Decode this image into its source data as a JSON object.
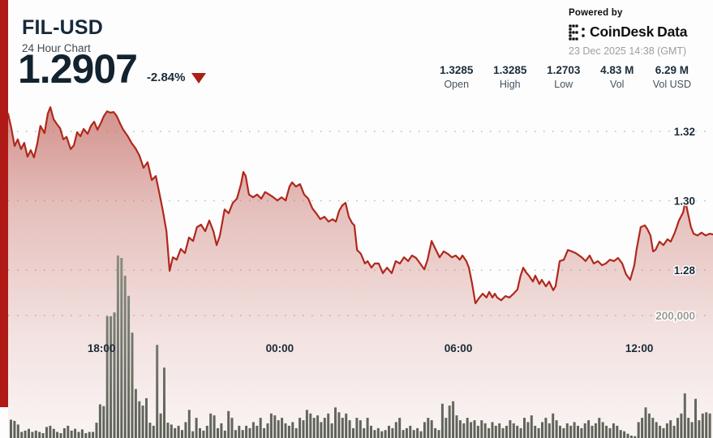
{
  "header": {
    "pair": "FIL-USD",
    "subtitle": "24 Hour Chart",
    "price": "1.2907",
    "change_pct": "-2.84%",
    "direction": "down"
  },
  "powered_by": {
    "label": "Powered by",
    "brand": "CoinDesk",
    "brand_suffix": "Data",
    "timestamp": "23 Dec 2025 14:38 (GMT)"
  },
  "stats": [
    {
      "value": "1.3285",
      "label": "Open"
    },
    {
      "value": "1.3285",
      "label": "High"
    },
    {
      "value": "1.2703",
      "label": "Low"
    },
    {
      "value": "4.83 M",
      "label": "Vol"
    },
    {
      "value": "6.29 M",
      "label": "Vol USD"
    }
  ],
  "colors": {
    "accent_red": "#b01a16",
    "line_red": "#b0281c",
    "navy_text": "#1b2a38",
    "grid_dot": "#8f8885",
    "volume_bar_top": "#8d9186",
    "volume_bar_bottom": "#5d6157",
    "vol_label_gray": "#a09a97"
  },
  "chart_data": {
    "type": "area",
    "title": "FIL-USD 24 Hour Chart",
    "legend": "none",
    "grid": "dotted-horizontal",
    "x_axis": {
      "range_hours": [
        0,
        24
      ],
      "ticks": [
        {
          "t": 3.18,
          "label": "18:00"
        },
        {
          "t": 9.25,
          "label": "00:00"
        },
        {
          "t": 15.33,
          "label": "06:00"
        },
        {
          "t": 21.49,
          "label": "12:00"
        }
      ]
    },
    "y_axis": {
      "ticks": [
        {
          "value": 1.32,
          "label": "1.32"
        },
        {
          "value": 1.3,
          "label": "1.30"
        },
        {
          "value": 1.28,
          "label": "1.28"
        }
      ],
      "approx_range": [
        1.266,
        1.335
      ]
    },
    "price_series": [
      [
        0.0,
        1.3251
      ],
      [
        0.11,
        1.3209
      ],
      [
        0.22,
        1.3158
      ],
      [
        0.33,
        1.3177
      ],
      [
        0.44,
        1.3149
      ],
      [
        0.55,
        1.3167
      ],
      [
        0.66,
        1.3127
      ],
      [
        0.77,
        1.3146
      ],
      [
        0.88,
        1.3125
      ],
      [
        0.99,
        1.3163
      ],
      [
        1.1,
        1.3216
      ],
      [
        1.24,
        1.3195
      ],
      [
        1.35,
        1.3251
      ],
      [
        1.44,
        1.327
      ],
      [
        1.55,
        1.3235
      ],
      [
        1.66,
        1.3221
      ],
      [
        1.77,
        1.3209
      ],
      [
        1.88,
        1.3177
      ],
      [
        1.99,
        1.3184
      ],
      [
        2.13,
        1.3149
      ],
      [
        2.24,
        1.316
      ],
      [
        2.35,
        1.3198
      ],
      [
        2.46,
        1.3186
      ],
      [
        2.57,
        1.3207
      ],
      [
        2.71,
        1.3193
      ],
      [
        2.82,
        1.3216
      ],
      [
        2.93,
        1.3228
      ],
      [
        3.04,
        1.3205
      ],
      [
        3.15,
        1.3223
      ],
      [
        3.26,
        1.3244
      ],
      [
        3.37,
        1.3258
      ],
      [
        3.48,
        1.3254
      ],
      [
        3.59,
        1.3256
      ],
      [
        3.7,
        1.3244
      ],
      [
        3.81,
        1.3223
      ],
      [
        3.92,
        1.3205
      ],
      [
        4.06,
        1.3188
      ],
      [
        4.2,
        1.3167
      ],
      [
        4.34,
        1.3151
      ],
      [
        4.47,
        1.313
      ],
      [
        4.61,
        1.3095
      ],
      [
        4.75,
        1.3111
      ],
      [
        4.89,
        1.306
      ],
      [
        5.03,
        1.3071
      ],
      [
        5.16,
        1.3018
      ],
      [
        5.27,
        1.2971
      ],
      [
        5.39,
        1.2912
      ],
      [
        5.5,
        1.2798
      ],
      [
        5.61,
        1.2837
      ],
      [
        5.74,
        1.283
      ],
      [
        5.88,
        1.2861
      ],
      [
        6.02,
        1.2849
      ],
      [
        6.16,
        1.2894
      ],
      [
        6.3,
        1.2884
      ],
      [
        6.43,
        1.2924
      ],
      [
        6.57,
        1.2931
      ],
      [
        6.71,
        1.2912
      ],
      [
        6.85,
        1.2943
      ],
      [
        6.99,
        1.2912
      ],
      [
        7.1,
        1.2872
      ],
      [
        7.21,
        1.29
      ],
      [
        7.37,
        1.2975
      ],
      [
        7.51,
        1.2964
      ],
      [
        7.65,
        1.2994
      ],
      [
        7.79,
        1.3006
      ],
      [
        7.93,
        1.3048
      ],
      [
        8.01,
        1.3083
      ],
      [
        8.09,
        1.3071
      ],
      [
        8.2,
        1.3018
      ],
      [
        8.34,
        1.301
      ],
      [
        8.48,
        1.3018
      ],
      [
        8.62,
        1.3006
      ],
      [
        8.75,
        1.3025
      ],
      [
        8.89,
        1.3018
      ],
      [
        9.03,
        1.301
      ],
      [
        9.17,
        1.3001
      ],
      [
        9.31,
        1.301
      ],
      [
        9.45,
        1.3001
      ],
      [
        9.58,
        1.3041
      ],
      [
        9.67,
        1.3053
      ],
      [
        9.8,
        1.3041
      ],
      [
        9.94,
        1.3048
      ],
      [
        10.08,
        1.3018
      ],
      [
        10.22,
        1.3006
      ],
      [
        10.36,
        1.2978
      ],
      [
        10.49,
        1.2964
      ],
      [
        10.63,
        1.2947
      ],
      [
        10.77,
        1.2954
      ],
      [
        10.91,
        1.294
      ],
      [
        11.05,
        1.2947
      ],
      [
        11.16,
        1.294
      ],
      [
        11.27,
        1.2971
      ],
      [
        11.38,
        1.2987
      ],
      [
        11.49,
        1.2994
      ],
      [
        11.6,
        1.2954
      ],
      [
        11.71,
        1.2936
      ],
      [
        11.79,
        1.2929
      ],
      [
        11.88,
        1.2858
      ],
      [
        12.01,
        1.2847
      ],
      [
        12.15,
        1.2819
      ],
      [
        12.24,
        1.2826
      ],
      [
        12.37,
        1.2807
      ],
      [
        12.48,
        1.2819
      ],
      [
        12.62,
        1.2819
      ],
      [
        12.76,
        1.2791
      ],
      [
        12.9,
        1.2807
      ],
      [
        13.06,
        1.2791
      ],
      [
        13.2,
        1.2826
      ],
      [
        13.34,
        1.2819
      ],
      [
        13.48,
        1.2837
      ],
      [
        13.62,
        1.2826
      ],
      [
        13.75,
        1.2842
      ],
      [
        13.89,
        1.2835
      ],
      [
        14.03,
        1.2819
      ],
      [
        14.17,
        1.2802
      ],
      [
        14.28,
        1.283
      ],
      [
        14.42,
        1.2884
      ],
      [
        14.55,
        1.2861
      ],
      [
        14.69,
        1.2837
      ],
      [
        14.83,
        1.2854
      ],
      [
        14.97,
        1.2847
      ],
      [
        15.11,
        1.2837
      ],
      [
        15.24,
        1.2842
      ],
      [
        15.38,
        1.283
      ],
      [
        15.47,
        1.2842
      ],
      [
        15.6,
        1.2826
      ],
      [
        15.69,
        1.2807
      ],
      [
        15.8,
        1.276
      ],
      [
        15.91,
        1.2704
      ],
      [
        16.02,
        1.2718
      ],
      [
        16.16,
        1.2732
      ],
      [
        16.29,
        1.2721
      ],
      [
        16.38,
        1.2737
      ],
      [
        16.49,
        1.2721
      ],
      [
        16.57,
        1.2732
      ],
      [
        16.65,
        1.2721
      ],
      [
        16.79,
        1.2713
      ],
      [
        16.93,
        1.2725
      ],
      [
        17.07,
        1.2721
      ],
      [
        17.21,
        1.2732
      ],
      [
        17.34,
        1.2744
      ],
      [
        17.45,
        1.2784
      ],
      [
        17.54,
        1.2807
      ],
      [
        17.62,
        1.2795
      ],
      [
        17.73,
        1.2784
      ],
      [
        17.87,
        1.2767
      ],
      [
        17.95,
        1.2784
      ],
      [
        18.09,
        1.276
      ],
      [
        18.17,
        1.2772
      ],
      [
        18.31,
        1.2753
      ],
      [
        18.42,
        1.2767
      ],
      [
        18.56,
        1.2742
      ],
      [
        18.64,
        1.2753
      ],
      [
        18.78,
        1.2826
      ],
      [
        18.92,
        1.283
      ],
      [
        19.06,
        1.2858
      ],
      [
        19.19,
        1.2854
      ],
      [
        19.33,
        1.2849
      ],
      [
        19.53,
        1.2837
      ],
      [
        19.66,
        1.2826
      ],
      [
        19.8,
        1.2842
      ],
      [
        19.94,
        1.2819
      ],
      [
        20.08,
        1.2826
      ],
      [
        20.22,
        1.2814
      ],
      [
        20.35,
        1.2819
      ],
      [
        20.49,
        1.283
      ],
      [
        20.63,
        1.2826
      ],
      [
        20.77,
        1.2835
      ],
      [
        20.91,
        1.2819
      ],
      [
        21.04,
        1.2788
      ],
      [
        21.18,
        1.2772
      ],
      [
        21.32,
        1.2814
      ],
      [
        21.4,
        1.2861
      ],
      [
        21.54,
        1.2924
      ],
      [
        21.68,
        1.2929
      ],
      [
        21.76,
        1.2919
      ],
      [
        21.87,
        1.29
      ],
      [
        21.96,
        1.2854
      ],
      [
        22.04,
        1.2858
      ],
      [
        22.18,
        1.2882
      ],
      [
        22.31,
        1.2872
      ],
      [
        22.45,
        1.2889
      ],
      [
        22.56,
        1.2882
      ],
      [
        22.7,
        1.2908
      ],
      [
        22.84,
        1.2943
      ],
      [
        22.98,
        1.2966
      ],
      [
        23.06,
        1.2999
      ],
      [
        23.14,
        1.2966
      ],
      [
        23.25,
        1.2924
      ],
      [
        23.34,
        1.2905
      ],
      [
        23.47,
        1.29
      ],
      [
        23.61,
        1.2908
      ],
      [
        23.75,
        1.29
      ],
      [
        23.89,
        1.2905
      ],
      [
        24.0,
        1.2903
      ]
    ],
    "volume": {
      "gridline_value": 200000,
      "gridline_label": "200,000",
      "unit": "thousands",
      "values_k": [
        30,
        28,
        22,
        10,
        12,
        15,
        10,
        12,
        10,
        8,
        18,
        20,
        15,
        10,
        8,
        16,
        20,
        12,
        15,
        10,
        14,
        8,
        10,
        10,
        25,
        55,
        52,
        199,
        199,
        205,
        298,
        294,
        265,
        232,
        172,
        80,
        60,
        53,
        65,
        25,
        20,
        152,
        40,
        115,
        25,
        22,
        16,
        20,
        13,
        26,
        46,
        11,
        33,
        16,
        12,
        20,
        40,
        37,
        16,
        24,
        12,
        44,
        33,
        13,
        20,
        13,
        20,
        16,
        26,
        20,
        33,
        16,
        24,
        40,
        37,
        29,
        33,
        24,
        20,
        26,
        16,
        33,
        29,
        46,
        40,
        33,
        37,
        26,
        33,
        40,
        24,
        50,
        42,
        33,
        40,
        29,
        16,
        33,
        29,
        16,
        33,
        20,
        13,
        16,
        11,
        13,
        20,
        16,
        26,
        33,
        13,
        16,
        20,
        13,
        16,
        11,
        26,
        33,
        29,
        16,
        13,
        56,
        33,
        53,
        60,
        37,
        29,
        24,
        33,
        26,
        29,
        20,
        29,
        24,
        16,
        26,
        20,
        24,
        16,
        20,
        29,
        24,
        20,
        16,
        33,
        26,
        37,
        20,
        16,
        26,
        33,
        24,
        40,
        29,
        20,
        16,
        24,
        20,
        26,
        20,
        16,
        24,
        29,
        20,
        24,
        33,
        26,
        20,
        16,
        24,
        20,
        13,
        11,
        7,
        4,
        3,
        26,
        33,
        50,
        40,
        33,
        26,
        20,
        16,
        24,
        29,
        20,
        33,
        40,
        73,
        33,
        26,
        64,
        29,
        40,
        42,
        40
      ]
    }
  }
}
